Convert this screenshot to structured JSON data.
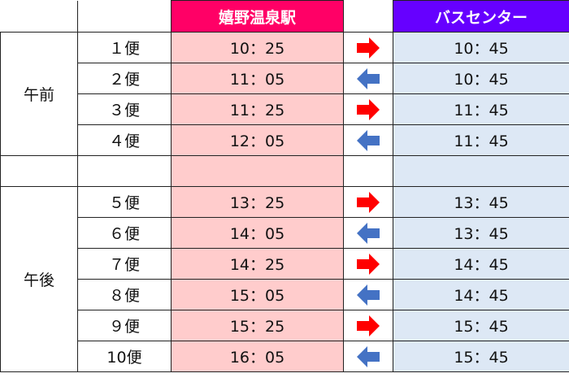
{
  "header": {
    "station_a": "嬉野温泉駅",
    "station_b": "バスセンター"
  },
  "colors": {
    "station_a_header": "#ff0066",
    "station_b_header": "#6600ff",
    "station_a_cell": "#ffcccc",
    "station_b_cell": "#dde8f5",
    "arrow_right": "#ff0000",
    "arrow_left": "#4472c4"
  },
  "periods": {
    "am": "午前",
    "pm": "午後"
  },
  "trips": [
    {
      "label": "１便",
      "a": "10：25",
      "dir": "right",
      "b": "10：45"
    },
    {
      "label": "２便",
      "a": "11：05",
      "dir": "left",
      "b": "10：45"
    },
    {
      "label": "３便",
      "a": "11：25",
      "dir": "right",
      "b": "11：45"
    },
    {
      "label": "４便",
      "a": "12：05",
      "dir": "left",
      "b": "11：45"
    },
    {
      "label": "５便",
      "a": "13：25",
      "dir": "right",
      "b": "13：45"
    },
    {
      "label": "６便",
      "a": "14：05",
      "dir": "left",
      "b": "13：45"
    },
    {
      "label": "７便",
      "a": "14：25",
      "dir": "right",
      "b": "14：45"
    },
    {
      "label": "８便",
      "a": "15：05",
      "dir": "left",
      "b": "14：45"
    },
    {
      "label": "９便",
      "a": "15：25",
      "dir": "right",
      "b": "15：45"
    },
    {
      "label": "10便",
      "a": "16：05",
      "dir": "left",
      "b": "15：45"
    }
  ]
}
